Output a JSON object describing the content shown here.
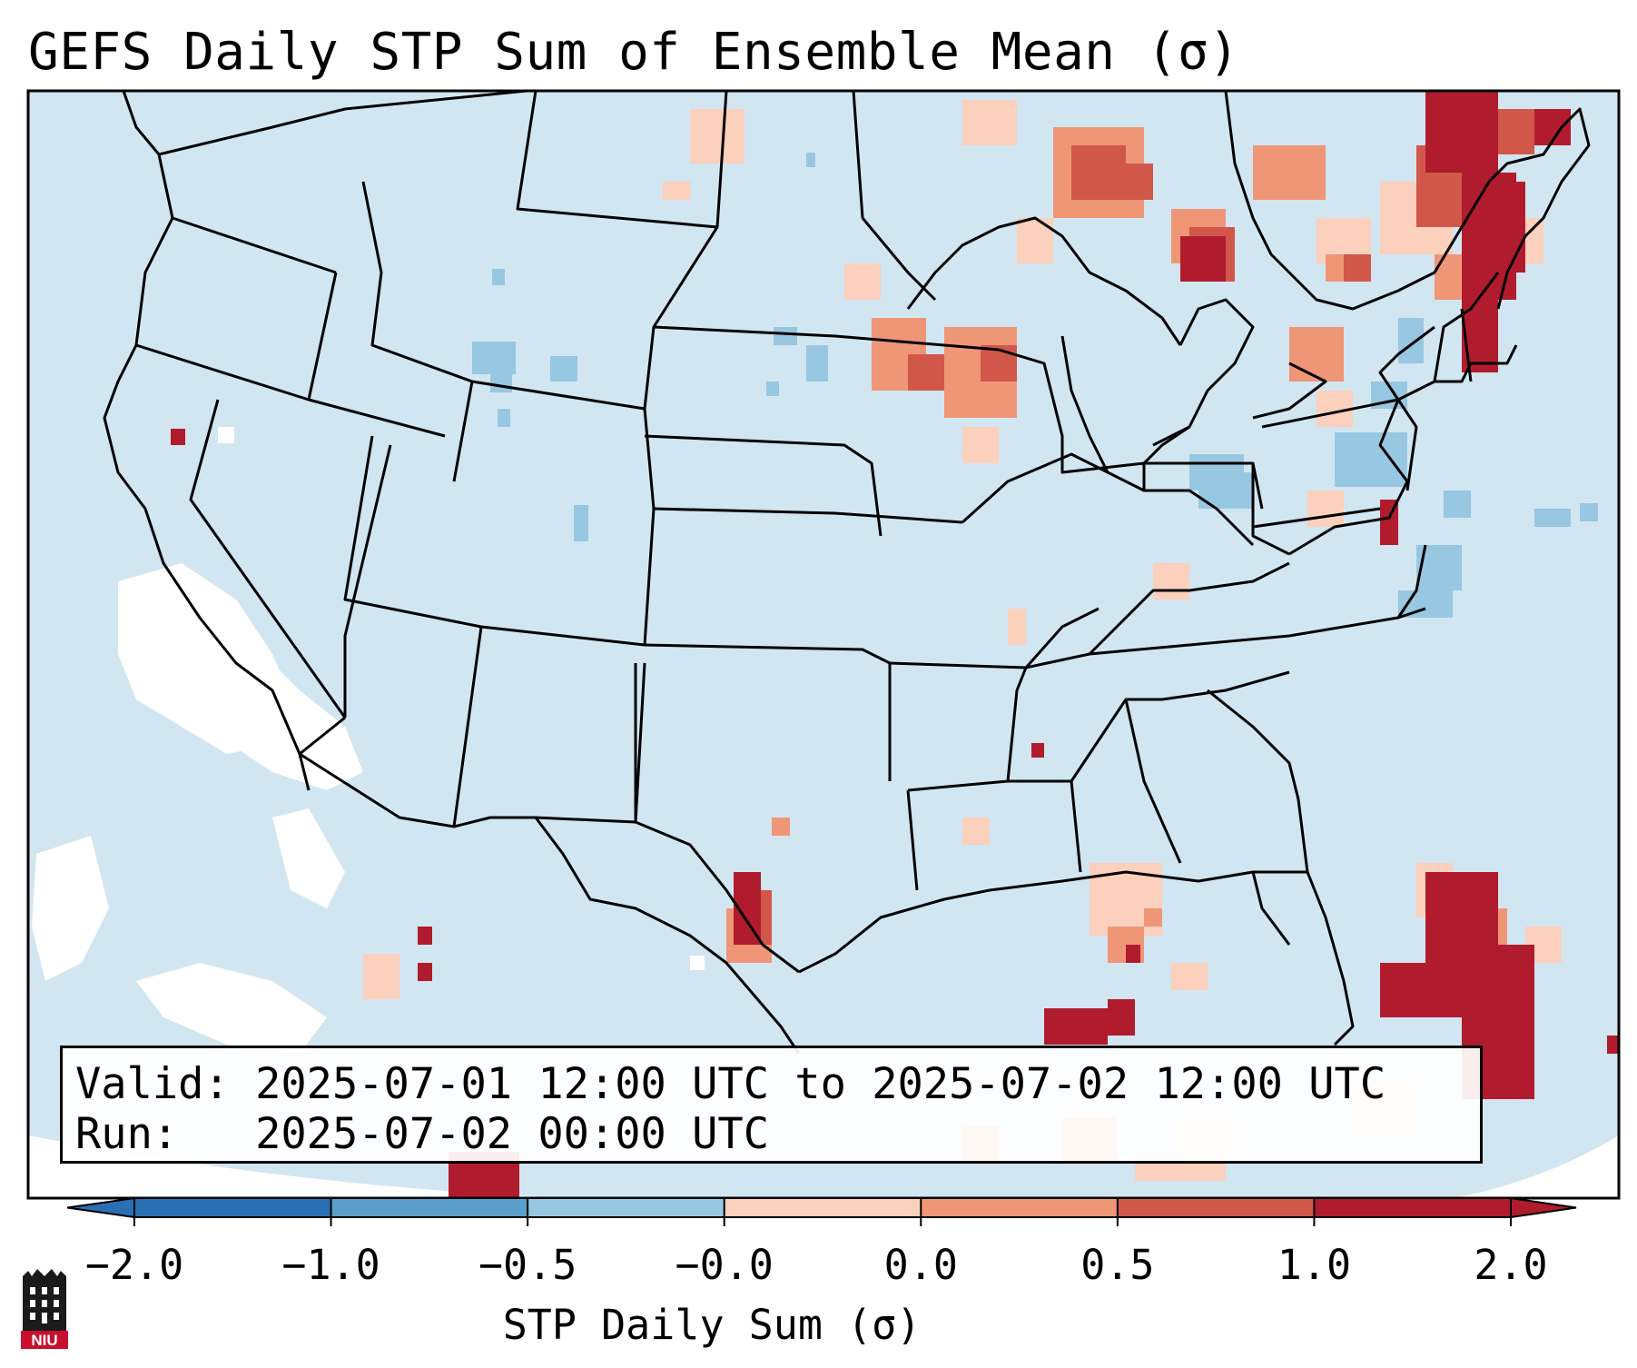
{
  "title": "GEFS Daily STP Sum of Ensemble Mean (σ)",
  "valid_line": "Valid: 2025-07-01 12:00 UTC to 2025-07-02 12:00 UTC",
  "run_line": "Run:   2025-07-02 00:00 UTC",
  "colorbar": {
    "label": "STP Daily Sum (σ)",
    "ticks": [
      "−2.0",
      "−1.0",
      "−0.5",
      "−0.0",
      "0.0",
      "0.5",
      "1.0",
      "2.0"
    ],
    "colors": [
      "#2a6fb4",
      "#5a9ecb",
      "#98c7e1",
      "#d0e5f1",
      "#fbd0bd",
      "#ef9677",
      "#d1574a",
      "#b01c2d"
    ],
    "extend": "both"
  },
  "legend": {
    "background_color": "#d2e6f1",
    "no_data_color": "#ffffff"
  },
  "logo": {
    "text": "NIU",
    "icon": "niu-castle-logo-icon"
  }
}
